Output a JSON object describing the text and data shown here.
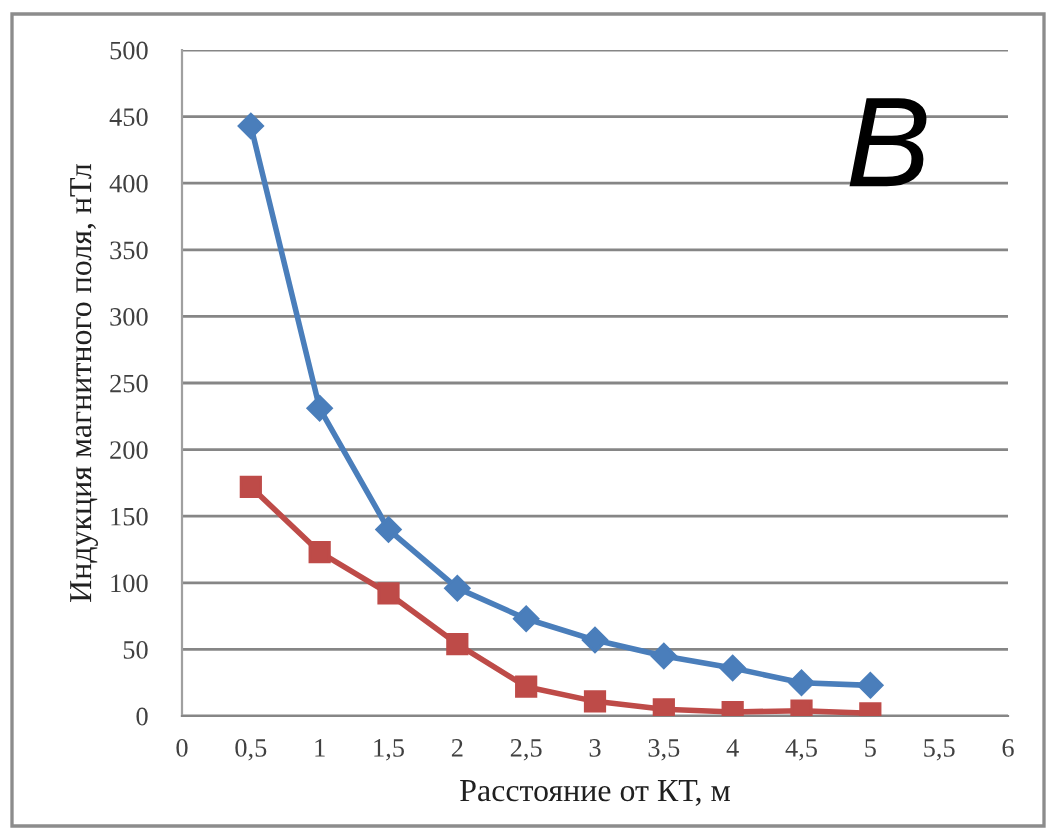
{
  "chart_data": {
    "type": "line",
    "xlabel": "Расстояние от КТ, м",
    "ylabel": "Индукция магнитного поля, нТл",
    "annotations": [
      "B"
    ],
    "x": [
      0.5,
      1,
      1.5,
      2,
      2.5,
      3,
      3.5,
      4,
      4.5,
      5
    ],
    "series": [
      {
        "color": "#4a7ebb",
        "marker": "diamond",
        "values": [
          443,
          231,
          140,
          96,
          73,
          57,
          45,
          36,
          25,
          23
        ]
      },
      {
        "color": "#be4b48",
        "marker": "square",
        "values": [
          172,
          123,
          92,
          54,
          22,
          11,
          5,
          3,
          4,
          2
        ]
      }
    ],
    "xlim": [
      0,
      6
    ],
    "xticks": [
      0,
      {
        "value": 0.5,
        "label": "0,5"
      },
      1,
      {
        "value": 1.5,
        "label": "1,5"
      },
      2,
      {
        "value": 2.5,
        "label": "2,5"
      },
      3,
      {
        "value": 3.5,
        "label": "3,5"
      },
      4,
      {
        "value": 4.5,
        "label": "4,5"
      },
      5,
      {
        "value": 5.5,
        "label": "5,5"
      },
      6
    ],
    "ylim": [
      0,
      500
    ],
    "yticks": [
      0,
      50,
      100,
      150,
      200,
      250,
      300,
      350,
      400,
      450,
      500
    ],
    "grid": "y",
    "line_style": "solid"
  }
}
